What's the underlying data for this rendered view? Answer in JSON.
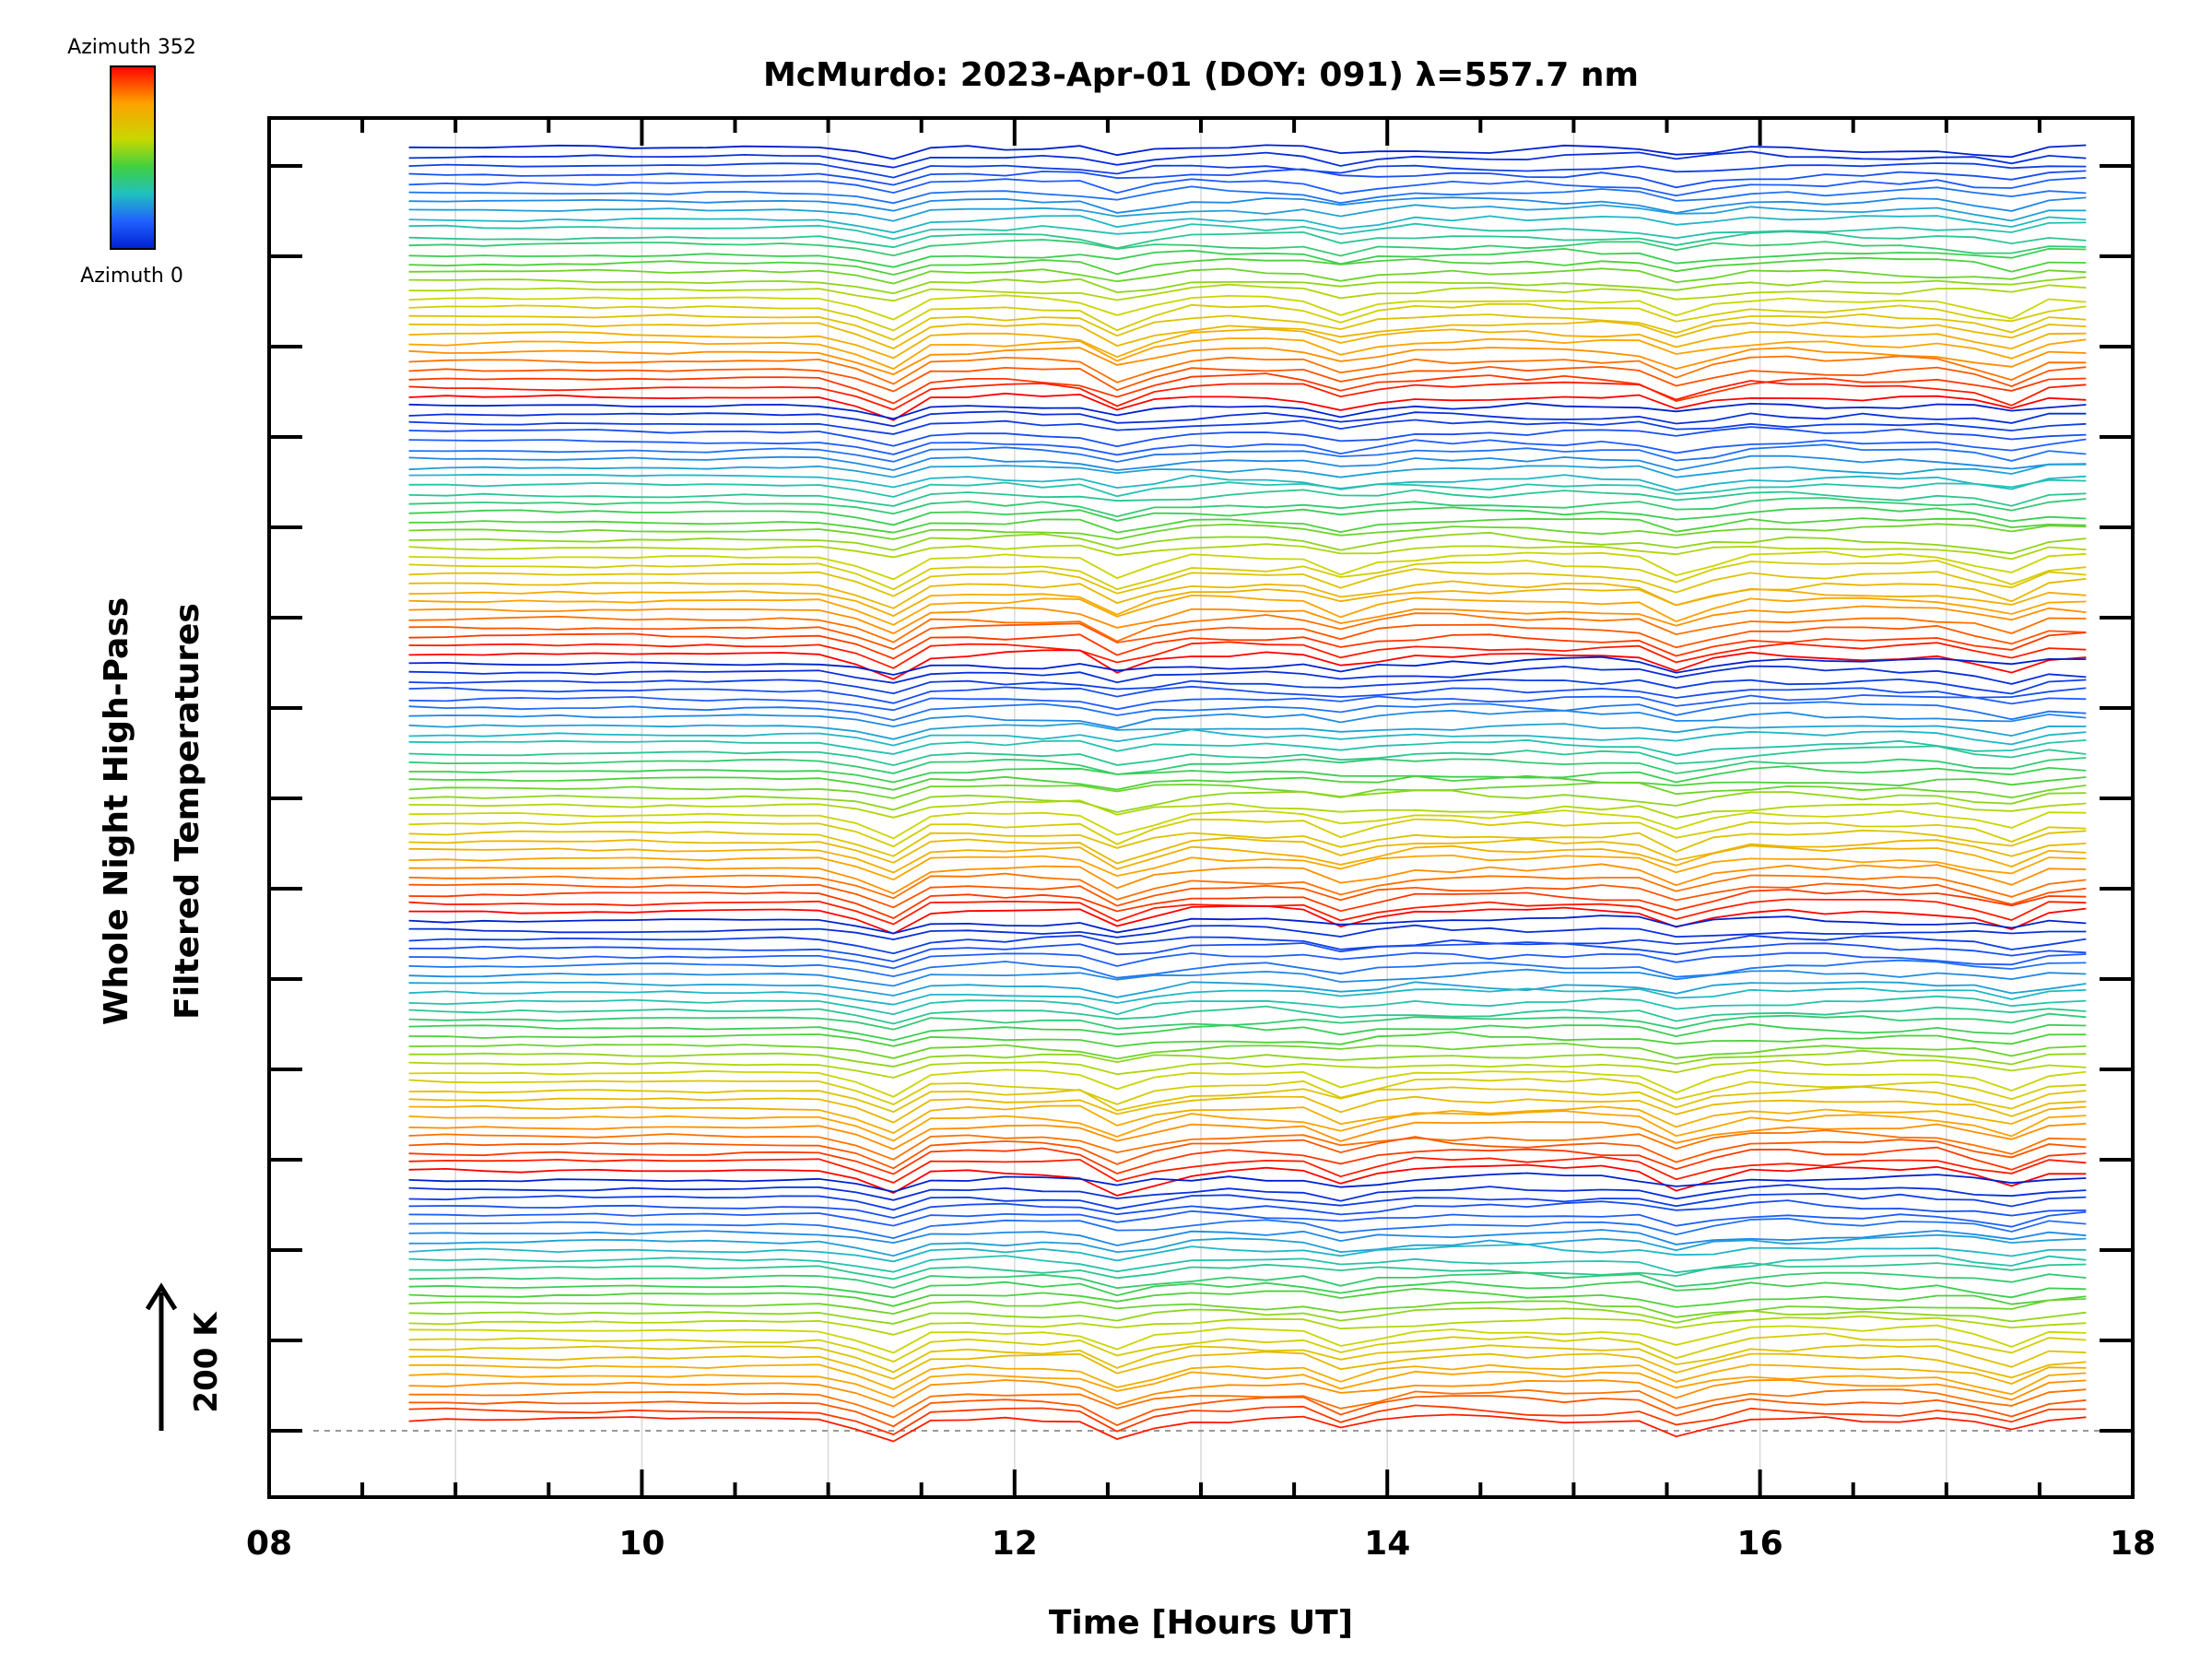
{
  "chart_data": {
    "type": "line",
    "title": "McMurdo: 2023-Apr-01 (DOY: 091) λ=557.7 nm",
    "xlabel": "Time [Hours UT]",
    "ylabel_line1": "Whole Night High-Pass",
    "ylabel_line2": "Filtered Temperatures",
    "xlim": [
      8,
      18
    ],
    "x_ticks": [
      "08",
      "10",
      "12",
      "14",
      "16",
      "18"
    ],
    "x_tick_values": [
      8,
      10,
      12,
      14,
      16,
      18
    ],
    "grid": "vertical",
    "colorbar": {
      "top_label": "Azimuth 352",
      "bottom_label": "Azimuth 0",
      "colors": [
        "#ff0000",
        "#ffa000",
        "#c8d800",
        "#40d040",
        "#20c0c0",
        "#2060ff",
        "#0020d0"
      ]
    },
    "scale_bar_label": "200 K",
    "series_summary": {
      "count": 144,
      "x_start_hours": 8.75,
      "x_end_hours": 17.85,
      "sample_interval_hours": 0.2,
      "offset_between_series": "stacked, color by azimuth"
    }
  }
}
